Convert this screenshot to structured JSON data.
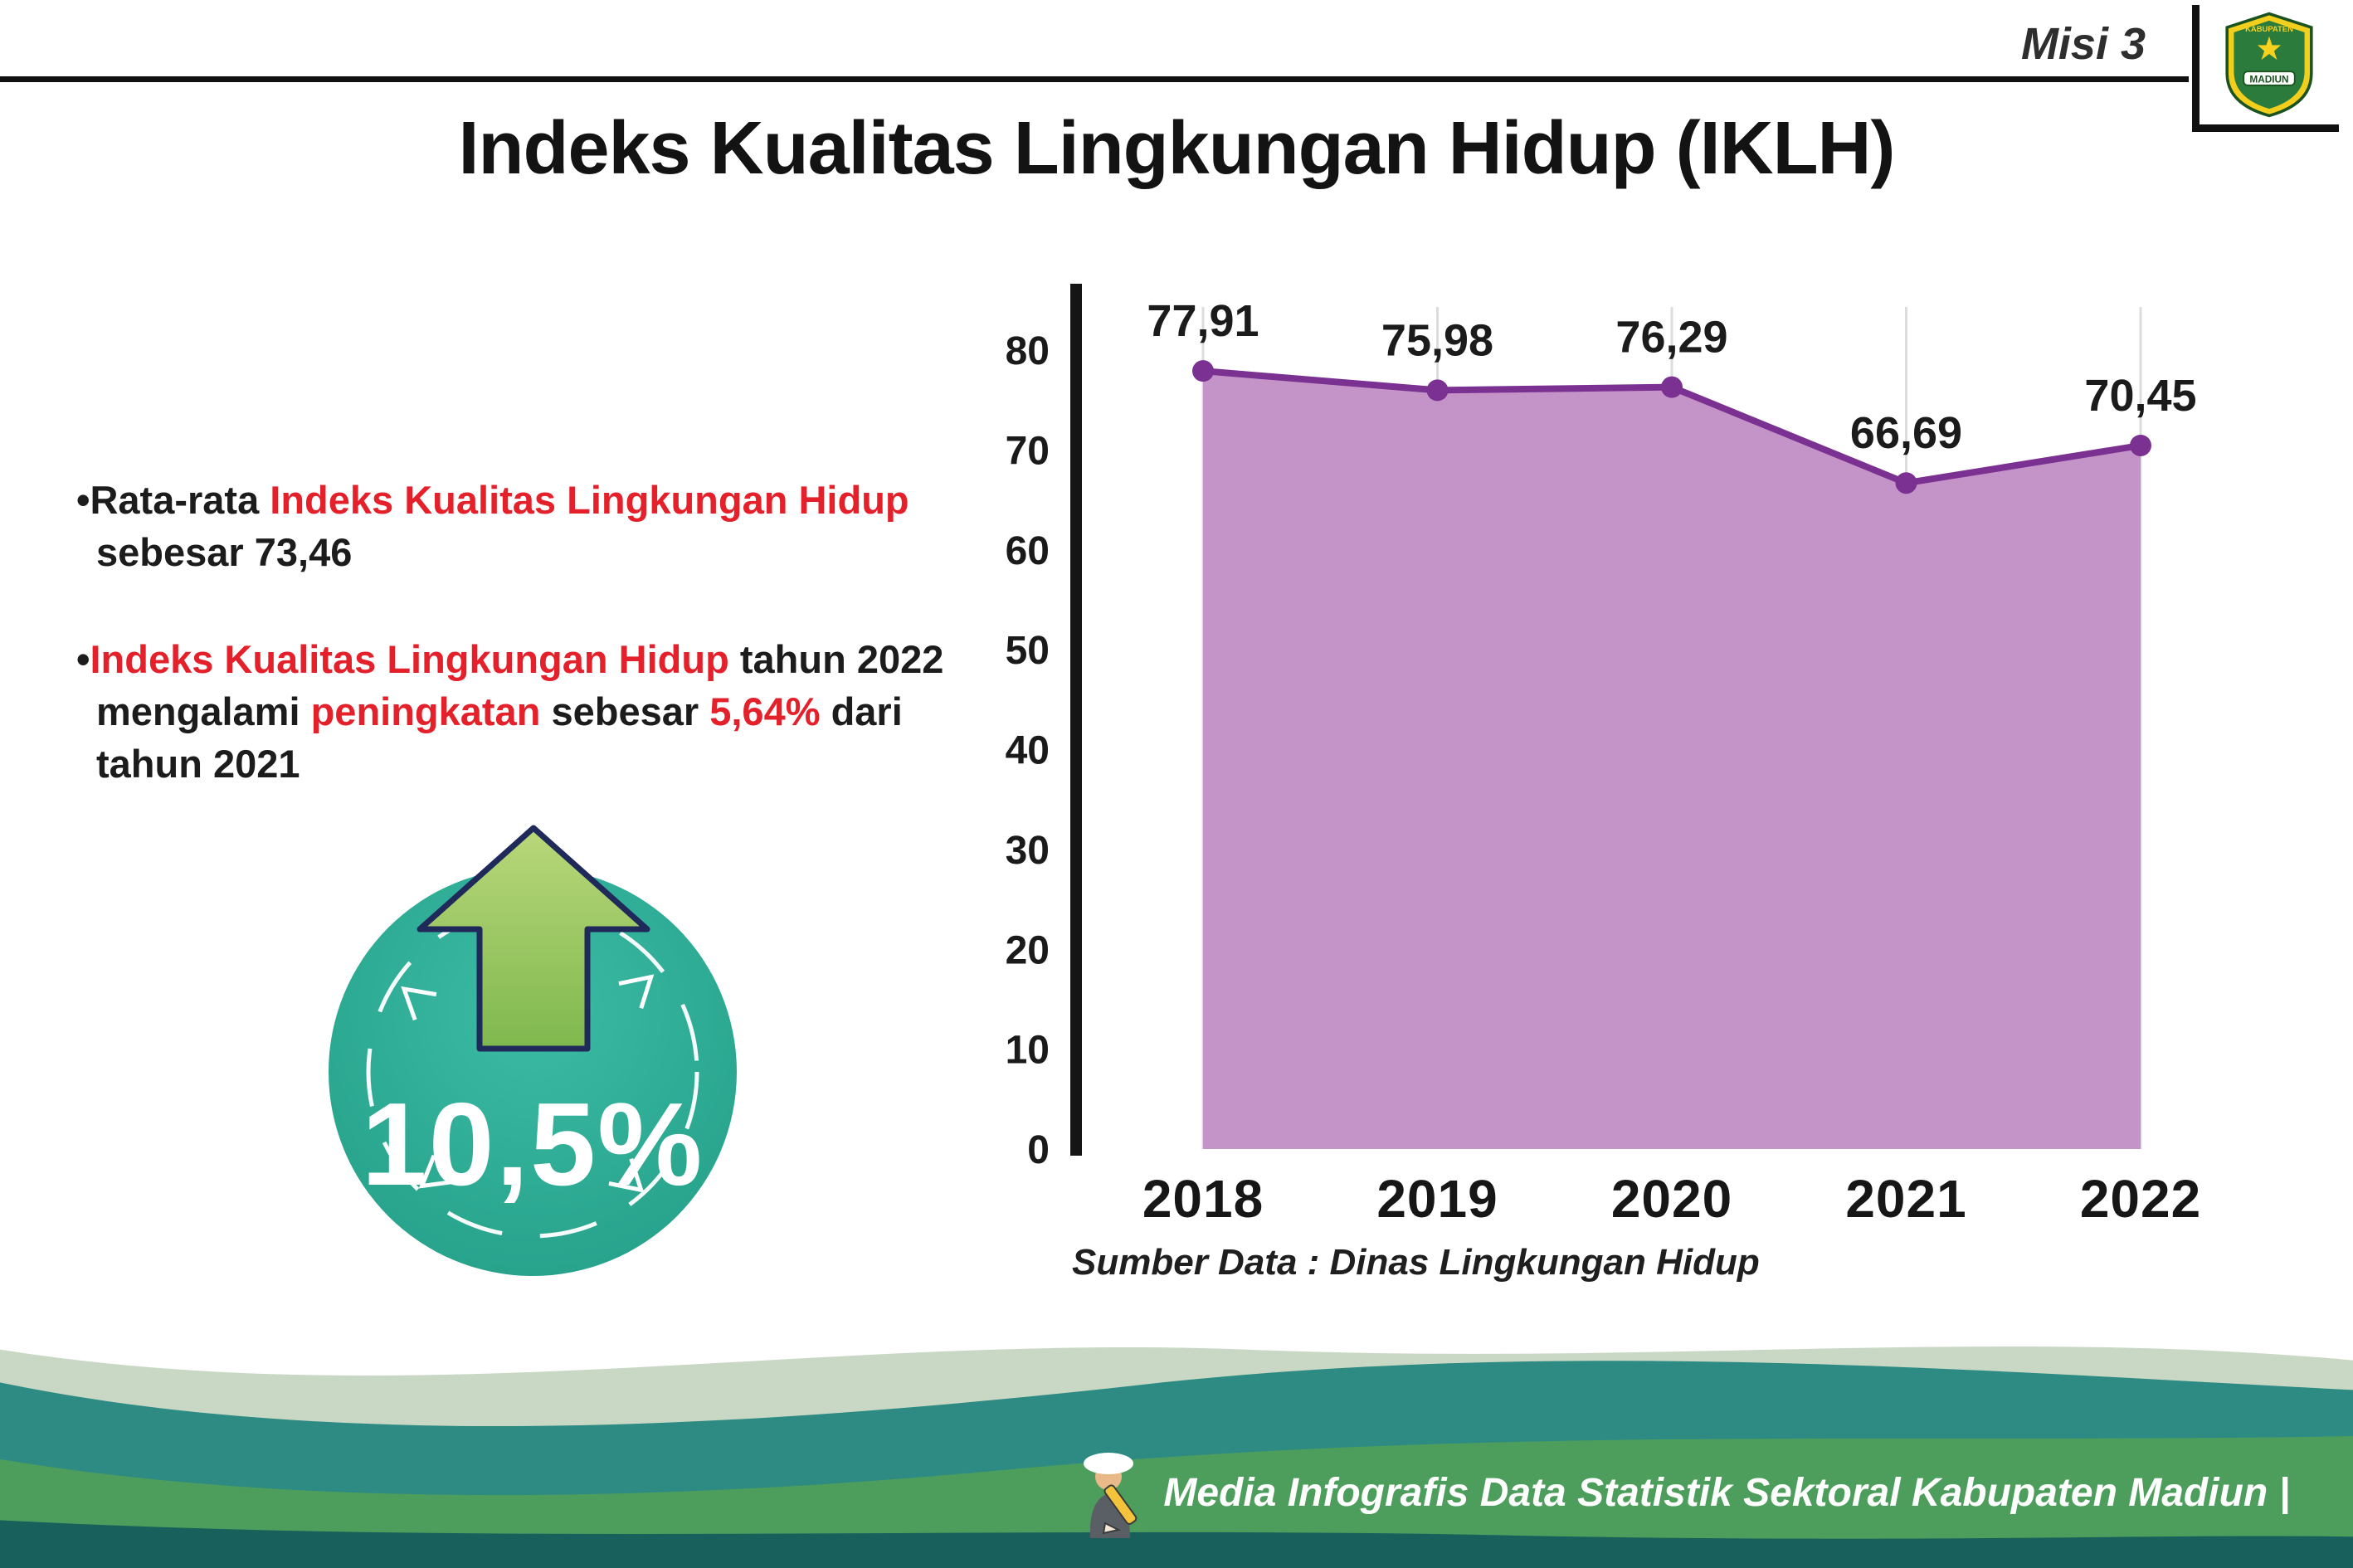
{
  "header": {
    "misi": "Misi 3",
    "title": "Indeks Kualitas Lingkungan Hidup (IKLH)",
    "logo_top": "KABUPATEN",
    "logo_bottom": "MADIUN"
  },
  "bullets": {
    "b1": {
      "dot": "•",
      "l1_black": "Rata-rata ",
      "l1_red": "Indeks Kualitas Lingkungan Hidup",
      "l2_black": "sebesar 73,46"
    },
    "b2": {
      "dot": "•",
      "l1_red": "Indeks Kualitas Lingkungan Hidup",
      "l1_black": " tahun 2022",
      "l2_black1": "mengalami ",
      "l2_red1": "peningkatan",
      "l2_black2": " sebesar ",
      "l2_red2": "5,64%",
      "l2_black3": " dari",
      "l3_black": "tahun 2021"
    }
  },
  "badge": {
    "value": "10,5%"
  },
  "chart_data": {
    "type": "area",
    "categories": [
      "2018",
      "2019",
      "2020",
      "2021",
      "2022"
    ],
    "values": [
      77.91,
      75.98,
      76.29,
      66.69,
      70.45
    ],
    "value_labels": [
      "77,91",
      "75,98",
      "76,29",
      "66,69",
      "70,45"
    ],
    "title": "",
    "xlabel": "",
    "ylabel": "",
    "ylim": [
      0,
      80
    ],
    "ytick_step": 10,
    "grid": "vertical-light",
    "legend": "none",
    "line_color": "#7b3191",
    "fill_color": "#c494c9",
    "point_color": "#7b3191",
    "source": "Sumber Data : Dinas Lingkungan Hidup"
  },
  "footer": {
    "caption": "Media Infografis Data Statistik Sektoral Kabupaten Madiun |"
  }
}
